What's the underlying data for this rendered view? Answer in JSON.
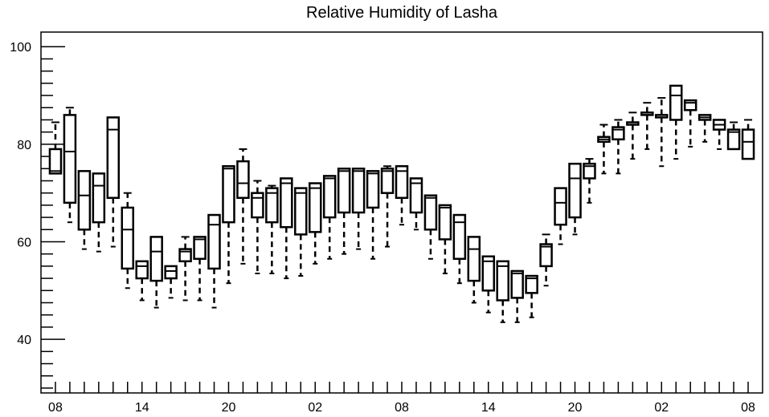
{
  "chart_data": {
    "type": "boxplot",
    "title": "Relative Humidity of Lasha",
    "xlabel": "",
    "ylabel": "",
    "ylim": [
      29,
      103
    ],
    "yticks": [
      40,
      60,
      80,
      100
    ],
    "x_tick_labels": [
      "08",
      "14",
      "20",
      "02",
      "08",
      "14",
      "20",
      "02",
      "08"
    ],
    "x_tick_positions": [
      0,
      6,
      12,
      18,
      24,
      30,
      36,
      42,
      48
    ],
    "x_range": [
      -1,
      49
    ],
    "grid": false,
    "boxes": [
      {
        "x": 0,
        "q1": 74,
        "q3": 79,
        "median": 74.5,
        "whisker_low": 74,
        "whisker_high": 84.5
      },
      {
        "x": 1,
        "q1": 68,
        "q3": 86,
        "median": 78.5,
        "whisker_low": 64,
        "whisker_high": 87.5
      },
      {
        "x": 2,
        "q1": 62.5,
        "q3": 74.5,
        "median": 69.5,
        "whisker_low": 58.5,
        "whisker_high": 74.5
      },
      {
        "x": 3,
        "q1": 64,
        "q3": 74,
        "median": 71.5,
        "whisker_low": 58,
        "whisker_high": 74
      },
      {
        "x": 4,
        "q1": 69,
        "q3": 85.5,
        "median": 83,
        "whisker_low": 59,
        "whisker_high": 85.5
      },
      {
        "x": 5,
        "q1": 54.5,
        "q3": 67,
        "median": 62.5,
        "whisker_low": 50.5,
        "whisker_high": 70
      },
      {
        "x": 6,
        "q1": 52.5,
        "q3": 56,
        "median": 55,
        "whisker_low": 48,
        "whisker_high": 56
      },
      {
        "x": 7,
        "q1": 52,
        "q3": 61,
        "median": 58,
        "whisker_low": 46.5,
        "whisker_high": 61
      },
      {
        "x": 8,
        "q1": 52.5,
        "q3": 55,
        "median": 54,
        "whisker_low": 48.5,
        "whisker_high": 55
      },
      {
        "x": 9,
        "q1": 56,
        "q3": 58.5,
        "median": 58,
        "whisker_low": 48,
        "whisker_high": 61
      },
      {
        "x": 10,
        "q1": 56.5,
        "q3": 61,
        "median": 60.5,
        "whisker_low": 48,
        "whisker_high": 61
      },
      {
        "x": 11,
        "q1": 54.5,
        "q3": 65.5,
        "median": 63.5,
        "whisker_low": 46.5,
        "whisker_high": 65.5
      },
      {
        "x": 12,
        "q1": 64,
        "q3": 75.5,
        "median": 75,
        "whisker_low": 51.5,
        "whisker_high": 75.5
      },
      {
        "x": 13,
        "q1": 69,
        "q3": 76.5,
        "median": 72,
        "whisker_low": 55.5,
        "whisker_high": 79
      },
      {
        "x": 14,
        "q1": 65,
        "q3": 70,
        "median": 69,
        "whisker_low": 53.5,
        "whisker_high": 72.5
      },
      {
        "x": 15,
        "q1": 64,
        "q3": 71,
        "median": 70,
        "whisker_low": 53.5,
        "whisker_high": 71.5
      },
      {
        "x": 16,
        "q1": 63,
        "q3": 73,
        "median": 72,
        "whisker_low": 52.5,
        "whisker_high": 73
      },
      {
        "x": 17,
        "q1": 61.5,
        "q3": 71,
        "median": 70,
        "whisker_low": 53,
        "whisker_high": 71
      },
      {
        "x": 18,
        "q1": 62,
        "q3": 72,
        "median": 71,
        "whisker_low": 55.5,
        "whisker_high": 72
      },
      {
        "x": 19,
        "q1": 65,
        "q3": 73.5,
        "median": 73,
        "whisker_low": 56.5,
        "whisker_high": 73.5
      },
      {
        "x": 20,
        "q1": 66,
        "q3": 75,
        "median": 74.5,
        "whisker_low": 57.5,
        "whisker_high": 75
      },
      {
        "x": 21,
        "q1": 66,
        "q3": 75,
        "median": 74.5,
        "whisker_low": 58.5,
        "whisker_high": 75
      },
      {
        "x": 22,
        "q1": 67,
        "q3": 74.5,
        "median": 74,
        "whisker_low": 56.5,
        "whisker_high": 74.5
      },
      {
        "x": 23,
        "q1": 70,
        "q3": 75,
        "median": 74.5,
        "whisker_low": 59,
        "whisker_high": 75.5
      },
      {
        "x": 24,
        "q1": 69,
        "q3": 75.5,
        "median": 74.5,
        "whisker_low": 63.5,
        "whisker_high": 75.5
      },
      {
        "x": 25,
        "q1": 66,
        "q3": 73,
        "median": 72,
        "whisker_low": 62.5,
        "whisker_high": 73
      },
      {
        "x": 26,
        "q1": 62.5,
        "q3": 69.5,
        "median": 69,
        "whisker_low": 56.5,
        "whisker_high": 69.5
      },
      {
        "x": 27,
        "q1": 60.5,
        "q3": 67.5,
        "median": 67,
        "whisker_low": 53.5,
        "whisker_high": 67.5
      },
      {
        "x": 28,
        "q1": 56.5,
        "q3": 65.5,
        "median": 64,
        "whisker_low": 51.5,
        "whisker_high": 65.5
      },
      {
        "x": 29,
        "q1": 52,
        "q3": 61,
        "median": 58.5,
        "whisker_low": 47.5,
        "whisker_high": 61
      },
      {
        "x": 30,
        "q1": 50,
        "q3": 57,
        "median": 56,
        "whisker_low": 45.5,
        "whisker_high": 57
      },
      {
        "x": 31,
        "q1": 48,
        "q3": 56,
        "median": 55,
        "whisker_low": 43.5,
        "whisker_high": 56
      },
      {
        "x": 32,
        "q1": 48.5,
        "q3": 54,
        "median": 53.5,
        "whisker_low": 43.5,
        "whisker_high": 54
      },
      {
        "x": 33,
        "q1": 49.5,
        "q3": 53,
        "median": 52.5,
        "whisker_low": 44.5,
        "whisker_high": 53
      },
      {
        "x": 34,
        "q1": 55,
        "q3": 59.5,
        "median": 59,
        "whisker_low": 51,
        "whisker_high": 61.5
      },
      {
        "x": 35,
        "q1": 63.5,
        "q3": 71,
        "median": 68,
        "whisker_low": 59.5,
        "whisker_high": 71
      },
      {
        "x": 36,
        "q1": 65,
        "q3": 76,
        "median": 73,
        "whisker_low": 61.5,
        "whisker_high": 76
      },
      {
        "x": 37,
        "q1": 73,
        "q3": 76,
        "median": 75.5,
        "whisker_low": 68,
        "whisker_high": 77
      },
      {
        "x": 38,
        "q1": 80.5,
        "q3": 81.5,
        "median": 81,
        "whisker_low": 74,
        "whisker_high": 84
      },
      {
        "x": 39,
        "q1": 81,
        "q3": 83.5,
        "median": 83,
        "whisker_low": 74,
        "whisker_high": 85
      },
      {
        "x": 40,
        "q1": 84,
        "q3": 84.5,
        "median": 84.5,
        "whisker_low": 77,
        "whisker_high": 86.5
      },
      {
        "x": 41,
        "q1": 86,
        "q3": 86.5,
        "median": 86,
        "whisker_low": 79,
        "whisker_high": 88.5
      },
      {
        "x": 42,
        "q1": 85.5,
        "q3": 86,
        "median": 86,
        "whisker_low": 75.5,
        "whisker_high": 89.5
      },
      {
        "x": 43,
        "q1": 85,
        "q3": 92,
        "median": 90,
        "whisker_low": 77,
        "whisker_high": 92
      },
      {
        "x": 44,
        "q1": 87,
        "q3": 89,
        "median": 88.5,
        "whisker_low": 79.5,
        "whisker_high": 89
      },
      {
        "x": 45,
        "q1": 85,
        "q3": 86,
        "median": 85.5,
        "whisker_low": 80.5,
        "whisker_high": 86
      },
      {
        "x": 46,
        "q1": 83,
        "q3": 85,
        "median": 84,
        "whisker_low": 79,
        "whisker_high": 85
      },
      {
        "x": 47,
        "q1": 79,
        "q3": 83,
        "median": 82.5,
        "whisker_low": 79,
        "whisker_high": 84.5
      },
      {
        "x": 48,
        "q1": 77,
        "q3": 83,
        "median": 80.5,
        "whisker_low": 77,
        "whisker_high": 85
      }
    ]
  }
}
